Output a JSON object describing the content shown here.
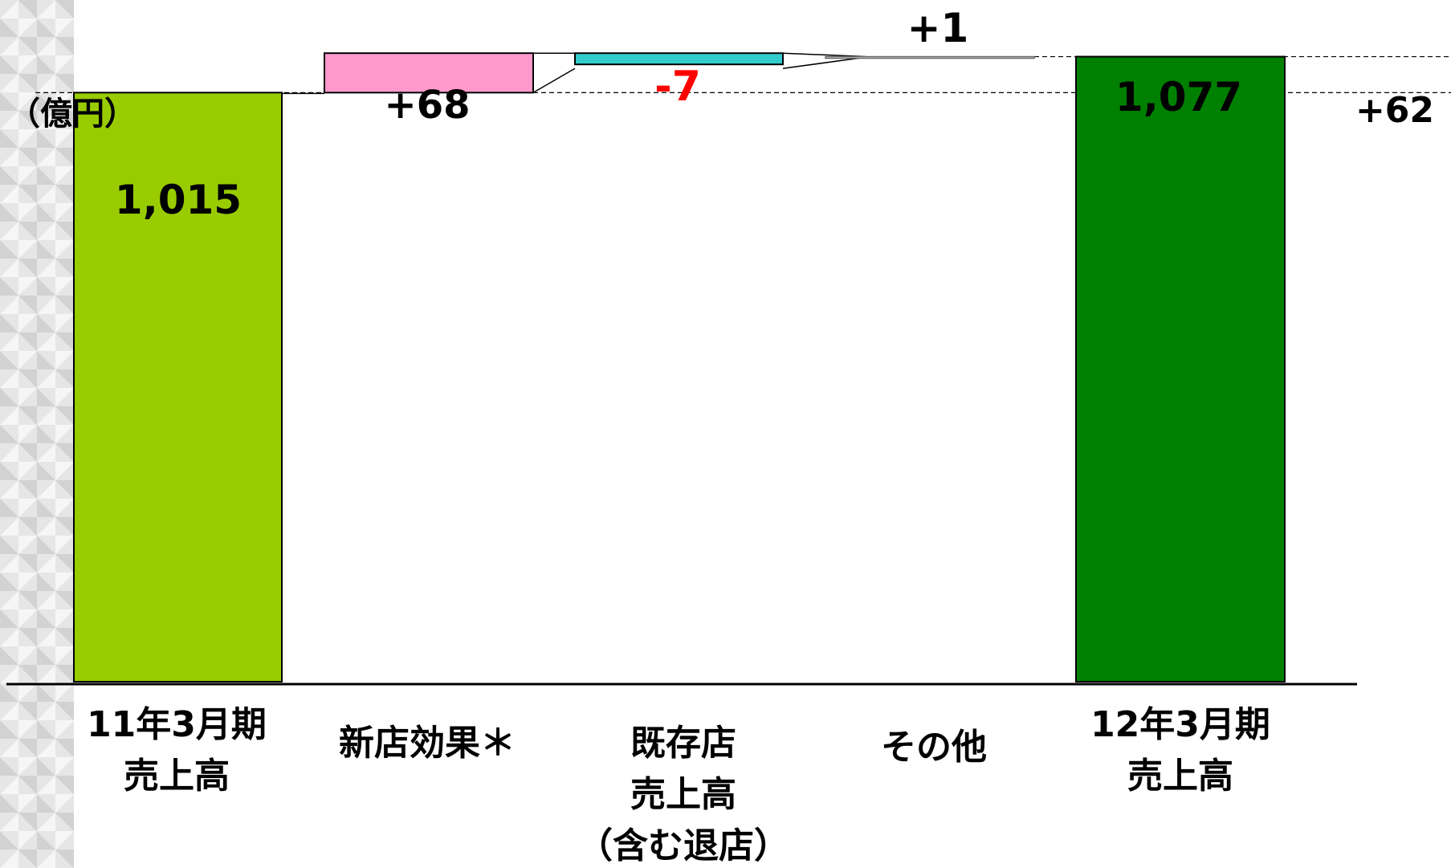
{
  "chart_data": {
    "type": "waterfall",
    "unit_label": "（億円）",
    "ylim": [
      0,
      1080
    ],
    "categories": [
      {
        "lines": [
          "11年3月期",
          "売上高"
        ]
      },
      {
        "lines": [
          "新店効果＊"
        ]
      },
      {
        "lines": [
          "既存店",
          "売上高",
          "（含む退店）"
        ]
      },
      {
        "lines": [
          "その他"
        ]
      },
      {
        "lines": [
          "12年3月期",
          "売上高"
        ]
      }
    ],
    "bars": [
      {
        "kind": "total",
        "value": 1015,
        "label": "1,015"
      },
      {
        "kind": "delta",
        "value": 68,
        "label": "+68"
      },
      {
        "kind": "delta",
        "value": -7,
        "label": "-7"
      },
      {
        "kind": "delta",
        "value": 1,
        "label": "+1"
      },
      {
        "kind": "total",
        "value": 1077,
        "label": "1,077"
      }
    ],
    "total_change_label": "+62",
    "colors": {
      "start_total": "#99cc00",
      "new_store": "#ff99cc",
      "existing_store": "#33cccc",
      "other": "#ffffff",
      "end_total": "#008000",
      "negative_text": "#ff0000",
      "text": "#000000"
    }
  }
}
